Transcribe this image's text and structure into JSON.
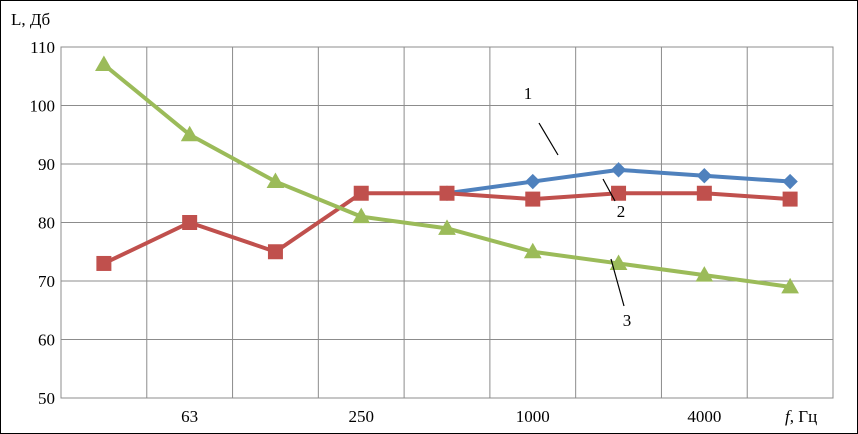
{
  "chart_data": {
    "type": "line",
    "ylabel": "L, Дб",
    "xlabel_italic": "f",
    "xlabel_rest": ", Гц",
    "ylim": [
      50,
      110
    ],
    "yticks": [
      50,
      60,
      70,
      80,
      90,
      100,
      110
    ],
    "grid": true,
    "categories": [
      "",
      "63",
      "",
      "250",
      "",
      "1000",
      "",
      "4000",
      ""
    ],
    "series": [
      {
        "name": "1",
        "color": "#4f81bd",
        "marker": "diamond",
        "values": [
          null,
          null,
          null,
          null,
          85,
          87,
          89,
          88,
          87
        ]
      },
      {
        "name": "2",
        "color": "#c0504d",
        "marker": "square",
        "values": [
          73,
          80,
          75,
          85,
          85,
          84,
          85,
          85,
          84
        ]
      },
      {
        "name": "3",
        "color": "#9bbb59",
        "marker": "triangle",
        "values": [
          107,
          95,
          87,
          81,
          79,
          75,
          73,
          71,
          69
        ]
      }
    ],
    "annotations": [
      {
        "text": "1",
        "series": 0
      },
      {
        "text": "2",
        "series": 1
      },
      {
        "text": "3",
        "series": 2
      }
    ]
  }
}
